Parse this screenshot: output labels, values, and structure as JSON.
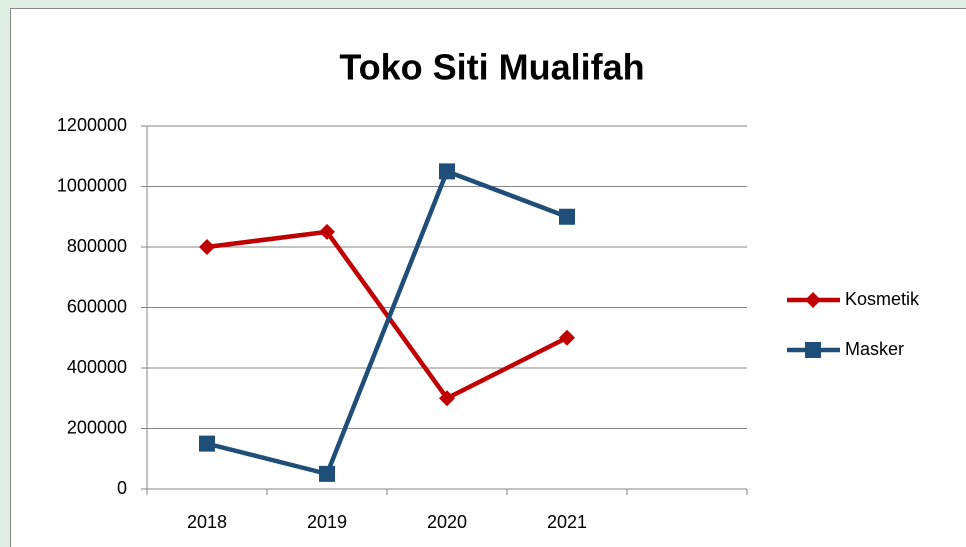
{
  "chart_data": {
    "type": "line",
    "title": "Toko Siti Mualifah",
    "categories": [
      "2018",
      "2019",
      "2020",
      "2021",
      null
    ],
    "series": [
      {
        "name": "Kosmetik",
        "color": "#c00000",
        "marker": "diamond",
        "values": [
          800000,
          850000,
          300000,
          500000,
          null
        ]
      },
      {
        "name": "Masker",
        "color": "#1f4e79",
        "marker": "square",
        "values": [
          150000,
          50000,
          1050000,
          900000,
          null
        ]
      }
    ],
    "ylim": [
      0,
      1200000
    ],
    "yticks": [
      0,
      200000,
      400000,
      600000,
      800000,
      1000000,
      1200000
    ],
    "grid": true,
    "legend": "right"
  }
}
